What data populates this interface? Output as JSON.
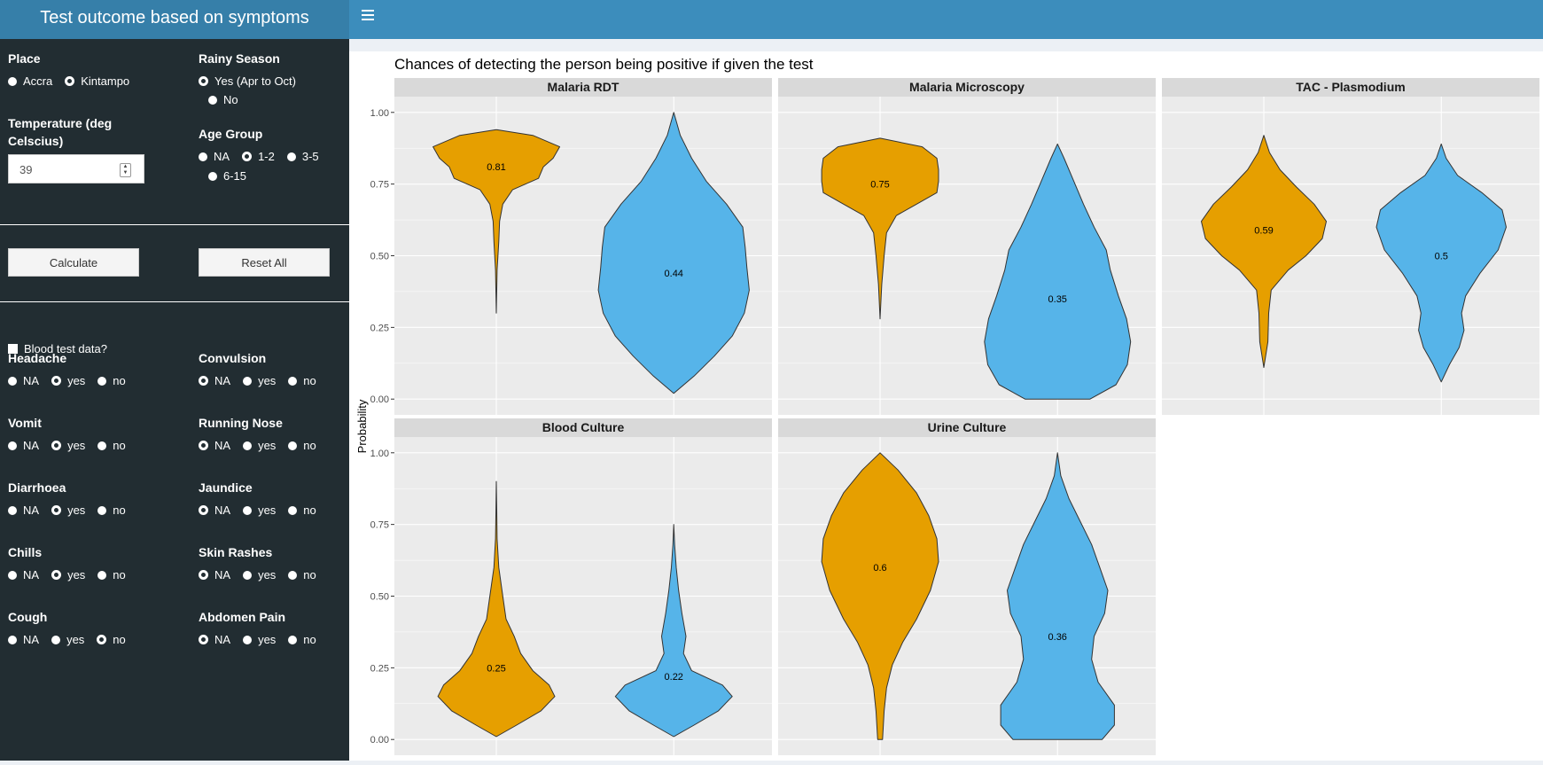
{
  "header": {
    "title": "Test outcome based on symptoms"
  },
  "sidebar": {
    "place": {
      "label": "Place",
      "options": [
        "Accra",
        "Kintampo"
      ],
      "selected": "Kintampo"
    },
    "rainy": {
      "label": "Rainy Season",
      "options": [
        "Yes (Apr to Oct)",
        "No"
      ],
      "selected": "Yes (Apr to Oct)"
    },
    "temperature": {
      "label_line1": "Temperature (deg",
      "label_line2": "Celscius)",
      "value": "39"
    },
    "age": {
      "label": "Age Group",
      "options": [
        "NA",
        "1-2",
        "3-5",
        "6-15"
      ],
      "selected": "1-2"
    },
    "buttons": {
      "calculate": "Calculate",
      "reset": "Reset All"
    },
    "blood_test": {
      "label": "Blood test data?"
    },
    "symptoms": [
      {
        "label": "Headache",
        "options": [
          "NA",
          "yes",
          "no"
        ],
        "selected": "yes"
      },
      {
        "label": "Convulsion",
        "options": [
          "NA",
          "yes",
          "no"
        ],
        "selected": "NA"
      },
      {
        "label": "Vomit",
        "options": [
          "NA",
          "yes",
          "no"
        ],
        "selected": "yes"
      },
      {
        "label": "Running Nose",
        "options": [
          "NA",
          "yes",
          "no"
        ],
        "selected": "NA"
      },
      {
        "label": "Diarrhoea",
        "options": [
          "NA",
          "yes",
          "no"
        ],
        "selected": "yes"
      },
      {
        "label": "Jaundice",
        "options": [
          "NA",
          "yes",
          "no"
        ],
        "selected": "NA"
      },
      {
        "label": "Chills",
        "options": [
          "NA",
          "yes",
          "no"
        ],
        "selected": "yes"
      },
      {
        "label": "Skin Rashes",
        "options": [
          "NA",
          "yes",
          "no"
        ],
        "selected": "NA"
      },
      {
        "label": "Cough",
        "options": [
          "NA",
          "yes",
          "no"
        ],
        "selected": "no"
      },
      {
        "label": "Abdomen Pain",
        "options": [
          "NA",
          "yes",
          "no"
        ],
        "selected": "NA"
      }
    ]
  },
  "chart_data": {
    "type": "violin",
    "title": "Chances of detecting the person being positive if given the test",
    "ylabel": "Probability",
    "ylim": [
      0,
      1
    ],
    "yticks": [
      "0.00",
      "0.25",
      "0.50",
      "0.75",
      "1.00"
    ],
    "colors": [
      "#e69f00",
      "#56b4e9"
    ],
    "panels": [
      {
        "name": "Malaria RDT",
        "violins": [
          {
            "median": 0.81,
            "label": "0.81",
            "min": 0.3,
            "max": 0.94,
            "shape": [
              [
                0.3,
                0.0
              ],
              [
                0.45,
                0.01
              ],
              [
                0.55,
                0.03
              ],
              [
                0.62,
                0.04
              ],
              [
                0.68,
                0.08
              ],
              [
                0.73,
                0.2
              ],
              [
                0.77,
                0.52
              ],
              [
                0.81,
                0.58
              ],
              [
                0.84,
                0.7
              ],
              [
                0.88,
                0.78
              ],
              [
                0.92,
                0.45
              ],
              [
                0.94,
                0.0
              ]
            ]
          },
          {
            "median": 0.44,
            "label": "0.44",
            "min": 0.02,
            "max": 1.0,
            "shape": [
              [
                0.02,
                0.0
              ],
              [
                0.08,
                0.25
              ],
              [
                0.15,
                0.5
              ],
              [
                0.22,
                0.72
              ],
              [
                0.3,
                0.87
              ],
              [
                0.38,
                0.93
              ],
              [
                0.46,
                0.9
              ],
              [
                0.53,
                0.88
              ],
              [
                0.6,
                0.85
              ],
              [
                0.68,
                0.65
              ],
              [
                0.76,
                0.4
              ],
              [
                0.84,
                0.22
              ],
              [
                0.92,
                0.08
              ],
              [
                1.0,
                0.0
              ]
            ]
          }
        ]
      },
      {
        "name": "Malaria Microscopy",
        "violins": [
          {
            "median": 0.75,
            "label": "0.75",
            "min": 0.28,
            "max": 0.91,
            "shape": [
              [
                0.28,
                0.0
              ],
              [
                0.4,
                0.02
              ],
              [
                0.5,
                0.05
              ],
              [
                0.58,
                0.08
              ],
              [
                0.64,
                0.2
              ],
              [
                0.68,
                0.45
              ],
              [
                0.72,
                0.7
              ],
              [
                0.76,
                0.72
              ],
              [
                0.8,
                0.72
              ],
              [
                0.84,
                0.7
              ],
              [
                0.88,
                0.52
              ],
              [
                0.91,
                0.0
              ]
            ]
          },
          {
            "median": 0.35,
            "label": "0.35",
            "min": 0.0,
            "max": 0.89,
            "shape": [
              [
                0.0,
                0.4
              ],
              [
                0.05,
                0.72
              ],
              [
                0.12,
                0.86
              ],
              [
                0.2,
                0.9
              ],
              [
                0.28,
                0.85
              ],
              [
                0.36,
                0.75
              ],
              [
                0.45,
                0.65
              ],
              [
                0.52,
                0.6
              ],
              [
                0.6,
                0.45
              ],
              [
                0.68,
                0.32
              ],
              [
                0.76,
                0.2
              ],
              [
                0.84,
                0.08
              ],
              [
                0.89,
                0.0
              ]
            ]
          }
        ]
      },
      {
        "name": "TAC - Plasmodium",
        "violins": [
          {
            "median": 0.59,
            "label": "0.59",
            "min": 0.11,
            "max": 0.92,
            "shape": [
              [
                0.11,
                0.0
              ],
              [
                0.2,
                0.05
              ],
              [
                0.3,
                0.06
              ],
              [
                0.38,
                0.09
              ],
              [
                0.45,
                0.3
              ],
              [
                0.5,
                0.52
              ],
              [
                0.56,
                0.72
              ],
              [
                0.62,
                0.77
              ],
              [
                0.68,
                0.62
              ],
              [
                0.74,
                0.4
              ],
              [
                0.8,
                0.2
              ],
              [
                0.86,
                0.07
              ],
              [
                0.92,
                0.0
              ]
            ]
          },
          {
            "median": 0.5,
            "label": "0.5",
            "min": 0.06,
            "max": 0.89,
            "shape": [
              [
                0.06,
                0.0
              ],
              [
                0.12,
                0.1
              ],
              [
                0.18,
                0.22
              ],
              [
                0.24,
                0.28
              ],
              [
                0.3,
                0.25
              ],
              [
                0.36,
                0.3
              ],
              [
                0.44,
                0.48
              ],
              [
                0.52,
                0.7
              ],
              [
                0.6,
                0.8
              ],
              [
                0.66,
                0.75
              ],
              [
                0.72,
                0.5
              ],
              [
                0.78,
                0.2
              ],
              [
                0.84,
                0.06
              ],
              [
                0.89,
                0.0
              ]
            ]
          }
        ]
      },
      {
        "name": "Blood Culture",
        "violins": [
          {
            "median": 0.25,
            "label": "0.25",
            "min": 0.01,
            "max": 0.9,
            "shape": [
              [
                0.01,
                0.0
              ],
              [
                0.05,
                0.25
              ],
              [
                0.1,
                0.55
              ],
              [
                0.15,
                0.72
              ],
              [
                0.19,
                0.65
              ],
              [
                0.24,
                0.45
              ],
              [
                0.3,
                0.3
              ],
              [
                0.36,
                0.22
              ],
              [
                0.42,
                0.12
              ],
              [
                0.5,
                0.08
              ],
              [
                0.6,
                0.03
              ],
              [
                0.7,
                0.01
              ],
              [
                0.8,
                0.005
              ],
              [
                0.9,
                0.0
              ]
            ]
          },
          {
            "median": 0.22,
            "label": "0.22",
            "min": 0.01,
            "max": 0.75,
            "shape": [
              [
                0.01,
                0.0
              ],
              [
                0.05,
                0.25
              ],
              [
                0.1,
                0.55
              ],
              [
                0.15,
                0.72
              ],
              [
                0.19,
                0.6
              ],
              [
                0.24,
                0.22
              ],
              [
                0.3,
                0.12
              ],
              [
                0.36,
                0.15
              ],
              [
                0.44,
                0.1
              ],
              [
                0.52,
                0.06
              ],
              [
                0.6,
                0.03
              ],
              [
                0.68,
                0.01
              ],
              [
                0.75,
                0.0
              ]
            ]
          }
        ]
      },
      {
        "name": "Urine Culture",
        "violins": [
          {
            "median": 0.6,
            "label": "0.6",
            "min": 0.0,
            "max": 1.0,
            "shape": [
              [
                0.0,
                0.03
              ],
              [
                0.1,
                0.05
              ],
              [
                0.18,
                0.08
              ],
              [
                0.26,
                0.15
              ],
              [
                0.34,
                0.28
              ],
              [
                0.42,
                0.45
              ],
              [
                0.52,
                0.62
              ],
              [
                0.62,
                0.72
              ],
              [
                0.7,
                0.7
              ],
              [
                0.78,
                0.6
              ],
              [
                0.86,
                0.45
              ],
              [
                0.94,
                0.22
              ],
              [
                1.0,
                0.0
              ]
            ]
          },
          {
            "median": 0.36,
            "label": "0.36",
            "min": 0.0,
            "max": 1.0,
            "shape": [
              [
                0.0,
                0.55
              ],
              [
                0.05,
                0.7
              ],
              [
                0.12,
                0.7
              ],
              [
                0.2,
                0.5
              ],
              [
                0.28,
                0.42
              ],
              [
                0.36,
                0.45
              ],
              [
                0.44,
                0.58
              ],
              [
                0.52,
                0.62
              ],
              [
                0.6,
                0.52
              ],
              [
                0.68,
                0.42
              ],
              [
                0.76,
                0.28
              ],
              [
                0.84,
                0.14
              ],
              [
                0.92,
                0.04
              ],
              [
                1.0,
                0.0
              ]
            ]
          }
        ]
      }
    ]
  }
}
